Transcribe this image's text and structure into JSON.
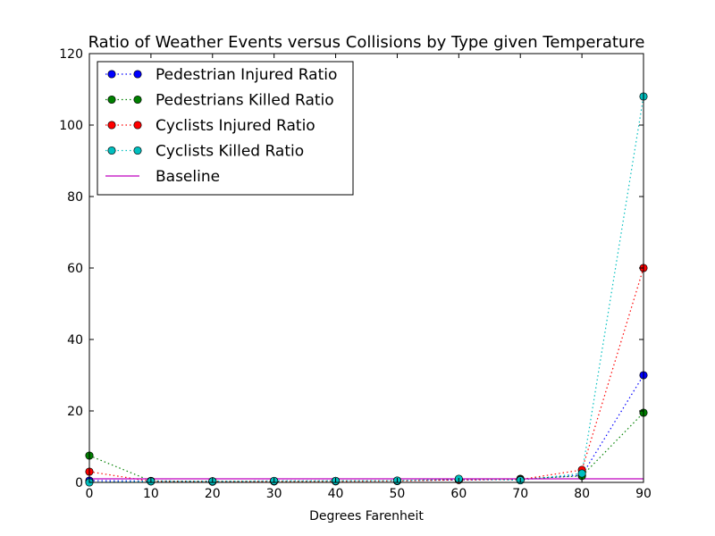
{
  "chart_data": {
    "type": "line",
    "title": "Ratio of Weather Events versus Collisions by Type given Temperature",
    "xlabel": "Degrees Farenheit",
    "ylabel": "",
    "xlim": [
      0,
      90
    ],
    "ylim": [
      0,
      120
    ],
    "xticks": [
      0,
      10,
      20,
      30,
      40,
      50,
      60,
      70,
      80,
      90
    ],
    "yticks": [
      0,
      20,
      40,
      60,
      80,
      100,
      120
    ],
    "x": [
      0,
      10,
      20,
      30,
      40,
      50,
      60,
      70,
      80,
      90
    ],
    "legend_position": "top-left",
    "grid": false,
    "series": [
      {
        "name": "Pedestrian Injured Ratio",
        "color": "#0000ff",
        "line_style": "dotted",
        "marker": "circle",
        "values": [
          0.5,
          0.4,
          0.3,
          0.4,
          0.4,
          0.5,
          0.7,
          0.8,
          2.0,
          30.0
        ]
      },
      {
        "name": "Pedestrians Killed Ratio",
        "color": "#008000",
        "line_style": "dotted",
        "marker": "circle",
        "values": [
          7.5,
          0.4,
          0.3,
          0.3,
          0.4,
          0.4,
          0.8,
          1.0,
          1.8,
          19.5
        ]
      },
      {
        "name": "Cyclists Injured Ratio",
        "color": "#ff0000",
        "line_style": "dotted",
        "marker": "circle",
        "values": [
          3.0,
          0.3,
          0.2,
          0.3,
          0.3,
          0.4,
          0.7,
          0.8,
          3.5,
          60.0
        ]
      },
      {
        "name": "Cyclists Killed Ratio",
        "color": "#00bfbf",
        "line_style": "dotted",
        "marker": "circle",
        "values": [
          0.0,
          0.3,
          0.3,
          0.4,
          0.4,
          0.5,
          1.0,
          0.6,
          2.5,
          108.0
        ]
      },
      {
        "name": "Baseline",
        "color": "#bf00bf",
        "line_style": "solid",
        "marker": "none",
        "values": [
          1,
          1,
          1,
          1,
          1,
          1,
          1,
          1,
          1,
          1
        ]
      }
    ]
  }
}
